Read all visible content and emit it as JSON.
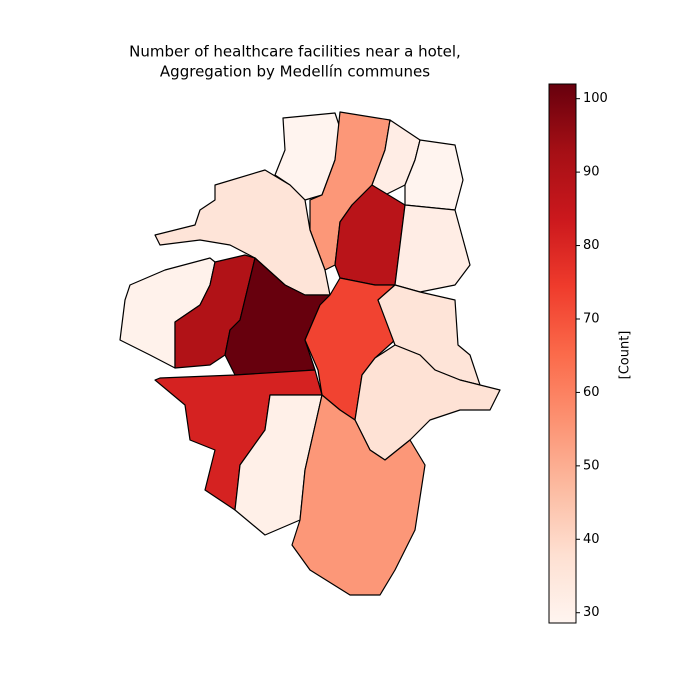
{
  "chart_data": {
    "type": "choropleth",
    "title": [
      "Number of healthcare facilities near a hotel,",
      "Aggregation by Medellín communes"
    ],
    "values": [
      29,
      55,
      32,
      29,
      36,
      88,
      32,
      30,
      90,
      102,
      73,
      36,
      37,
      81,
      31,
      55
    ],
    "colormap": [
      "#fff5f0",
      "#fee0d2",
      "#fcbba1",
      "#fc9272",
      "#fb6a4a",
      "#ef3b2c",
      "#cb181d",
      "#a50f15",
      "#67000d"
    ],
    "colorbar_label": "[Count]",
    "clim": [
      28.6,
      102
    ],
    "cticks": [
      30,
      40,
      50,
      60,
      70,
      80,
      90,
      100
    ]
  }
}
